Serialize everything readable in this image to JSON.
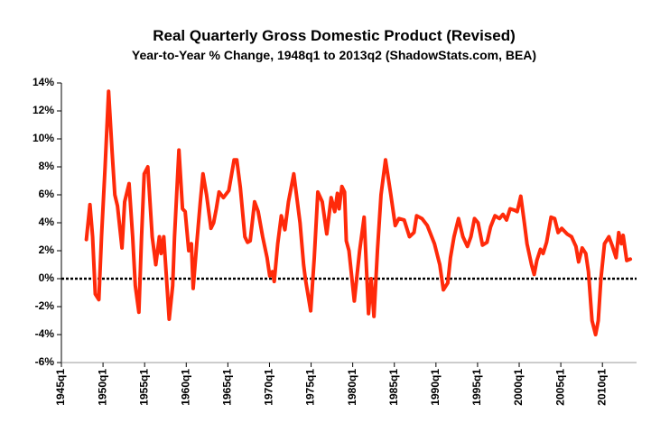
{
  "chart_data": {
    "type": "line",
    "title": "Real Quarterly Gross Domestic Product (Revised)",
    "subtitle": "Year-to-Year % Change, 1948q1 to 2013q2 (ShadowStats.com, BEA)",
    "x": [
      1948.0,
      1948.43,
      1948.75,
      1949.07,
      1949.5,
      1949.82,
      1950.25,
      1950.67,
      1951.1,
      1951.42,
      1951.74,
      1952.28,
      1952.6,
      1953.13,
      1953.56,
      1953.88,
      1954.31,
      1954.63,
      1954.95,
      1955.38,
      1955.91,
      1956.34,
      1956.77,
      1956.98,
      1957.3,
      1957.95,
      1958.37,
      1958.59,
      1959.12,
      1959.55,
      1959.87,
      1960.3,
      1960.62,
      1960.83,
      1961.26,
      1961.69,
      1962.01,
      1962.44,
      1962.97,
      1963.29,
      1963.61,
      1963.94,
      1964.47,
      1965.11,
      1965.75,
      1966.07,
      1966.5,
      1967.04,
      1967.36,
      1967.68,
      1968.21,
      1968.64,
      1969.18,
      1969.71,
      1970.03,
      1970.35,
      1970.57,
      1970.99,
      1971.42,
      1971.85,
      1972.28,
      1972.92,
      1973.67,
      1974.1,
      1974.31,
      1974.95,
      1975.38,
      1975.81,
      1976.34,
      1976.88,
      1977.41,
      1977.84,
      1978.16,
      1978.37,
      1978.7,
      1979.02,
      1979.23,
      1979.55,
      1980.19,
      1980.83,
      1981.37,
      1981.9,
      1982.22,
      1982.55,
      1982.97,
      1983.4,
      1983.94,
      1984.58,
      1985.11,
      1985.54,
      1986.18,
      1986.82,
      1987.36,
      1987.68,
      1988.32,
      1988.96,
      1989.82,
      1990.46,
      1990.89,
      1991.42,
      1991.74,
      1992.17,
      1992.71,
      1993.24,
      1993.78,
      1994.2,
      1994.63,
      1995.06,
      1995.59,
      1996.13,
      1996.56,
      1997.09,
      1997.63,
      1998.05,
      1998.48,
      1998.91,
      1999.44,
      1999.76,
      2000.19,
      2000.62,
      2000.94,
      2001.48,
      2001.8,
      2002.12,
      2002.55,
      2002.87,
      2003.29,
      2003.83,
      2004.26,
      2004.68,
      2005.11,
      2005.75,
      2006.29,
      2006.82,
      2007.14,
      2007.57,
      2008.0,
      2008.32,
      2008.75,
      2009.18,
      2009.5,
      2009.82,
      2010.25,
      2010.78,
      2011.21,
      2011.64,
      2011.96,
      2012.28,
      2012.49,
      2012.92,
      2013.35
    ],
    "series": [
      {
        "color": "#ff2a0a",
        "values": [
          2.8,
          5.3,
          3.0,
          -1.1,
          -1.5,
          3.0,
          8.0,
          13.4,
          9.0,
          6.0,
          5.2,
          2.2,
          5.5,
          6.8,
          3.0,
          -0.5,
          -2.4,
          3.0,
          7.5,
          8.0,
          3.0,
          1.0,
          3.0,
          1.8,
          3.0,
          -2.9,
          -0.5,
          3.0,
          9.2,
          5.0,
          4.8,
          2.0,
          2.5,
          -0.7,
          2.5,
          5.5,
          7.5,
          6.0,
          3.6,
          4.0,
          5.0,
          6.2,
          5.8,
          6.3,
          8.5,
          8.5,
          6.5,
          3.0,
          2.6,
          2.7,
          5.5,
          4.8,
          3.0,
          1.5,
          0.2,
          0.5,
          -0.2,
          2.5,
          4.5,
          3.5,
          5.5,
          7.5,
          4.0,
          1.0,
          0.0,
          -2.3,
          1.5,
          6.2,
          5.5,
          3.2,
          5.8,
          4.8,
          6.1,
          5.0,
          6.6,
          6.2,
          2.7,
          2.0,
          -1.6,
          2.0,
          4.4,
          -2.5,
          0.0,
          -2.7,
          2.0,
          6.0,
          8.5,
          6.0,
          3.8,
          4.3,
          4.2,
          3.0,
          3.3,
          4.5,
          4.3,
          3.8,
          2.5,
          1.0,
          -0.8,
          -0.3,
          1.5,
          3.0,
          4.3,
          3.0,
          2.3,
          3.0,
          4.3,
          4.0,
          2.4,
          2.6,
          3.7,
          4.5,
          4.3,
          4.6,
          4.2,
          5.0,
          4.9,
          4.8,
          5.9,
          4.0,
          2.5,
          1.0,
          0.3,
          1.3,
          2.1,
          1.8,
          2.6,
          4.4,
          4.3,
          3.3,
          3.6,
          3.2,
          3.0,
          2.3,
          1.2,
          2.2,
          1.8,
          0.5,
          -3.0,
          -4.0,
          -3.0,
          0.0,
          2.5,
          3.0,
          2.3,
          1.5,
          3.3,
          2.5,
          3.1,
          1.3,
          1.4
        ]
      }
    ],
    "xlim": [
      1945,
      2014.1
    ],
    "xticks": [
      {
        "value": 1945,
        "label": "1945q1"
      },
      {
        "value": 1950,
        "label": "1950q1"
      },
      {
        "value": 1955,
        "label": "1955q1"
      },
      {
        "value": 1960,
        "label": "1960q1"
      },
      {
        "value": 1965,
        "label": "1965q1"
      },
      {
        "value": 1970,
        "label": "1970q1"
      },
      {
        "value": 1975,
        "label": "1975q1"
      },
      {
        "value": 1980,
        "label": "1980q1"
      },
      {
        "value": 1985,
        "label": "1985q1"
      },
      {
        "value": 1990,
        "label": "1990q1"
      },
      {
        "value": 1995,
        "label": "1995q1"
      },
      {
        "value": 2000,
        "label": "2000q1"
      },
      {
        "value": 2005,
        "label": "2005q1"
      },
      {
        "value": 2010,
        "label": "2010q1"
      }
    ],
    "ylim": [
      -6,
      14
    ],
    "yticks": [
      {
        "value": -6,
        "label": "-6%"
      },
      {
        "value": -4,
        "label": "-4%"
      },
      {
        "value": -2,
        "label": "-2%"
      },
      {
        "value": 0,
        "label": "0%"
      },
      {
        "value": 2,
        "label": "2%"
      },
      {
        "value": 4,
        "label": "4%"
      },
      {
        "value": 6,
        "label": "6%"
      },
      {
        "value": 8,
        "label": "8%"
      },
      {
        "value": 10,
        "label": "10%"
      },
      {
        "value": 12,
        "label": "12%"
      },
      {
        "value": 14,
        "label": "14%"
      }
    ],
    "grid": false
  }
}
